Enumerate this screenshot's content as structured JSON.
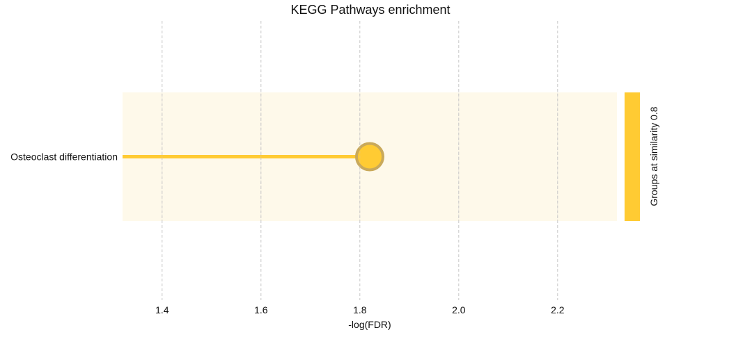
{
  "chart_data": {
    "type": "lollipop",
    "title": "KEGG Pathways enrichment",
    "xlabel": "-log(FDR)",
    "ylabel": "",
    "xlim": [
      1.32,
      2.32
    ],
    "xticks": [
      "1.4",
      "1.6",
      "1.8",
      "2.0",
      "2.2"
    ],
    "xtick_values": [
      1.4,
      1.6,
      1.8,
      2.0,
      2.2
    ],
    "grid": "vertical dashed",
    "categories": [
      "Osteoclast differentiation"
    ],
    "values": [
      1.82
    ],
    "band_label": "Groups at similarity 0.8",
    "colors": {
      "accent": "#ffcb33",
      "band_fill": "#fef9ea",
      "marker_edge": "#c9a95a",
      "stem": "#ffcb33"
    }
  }
}
